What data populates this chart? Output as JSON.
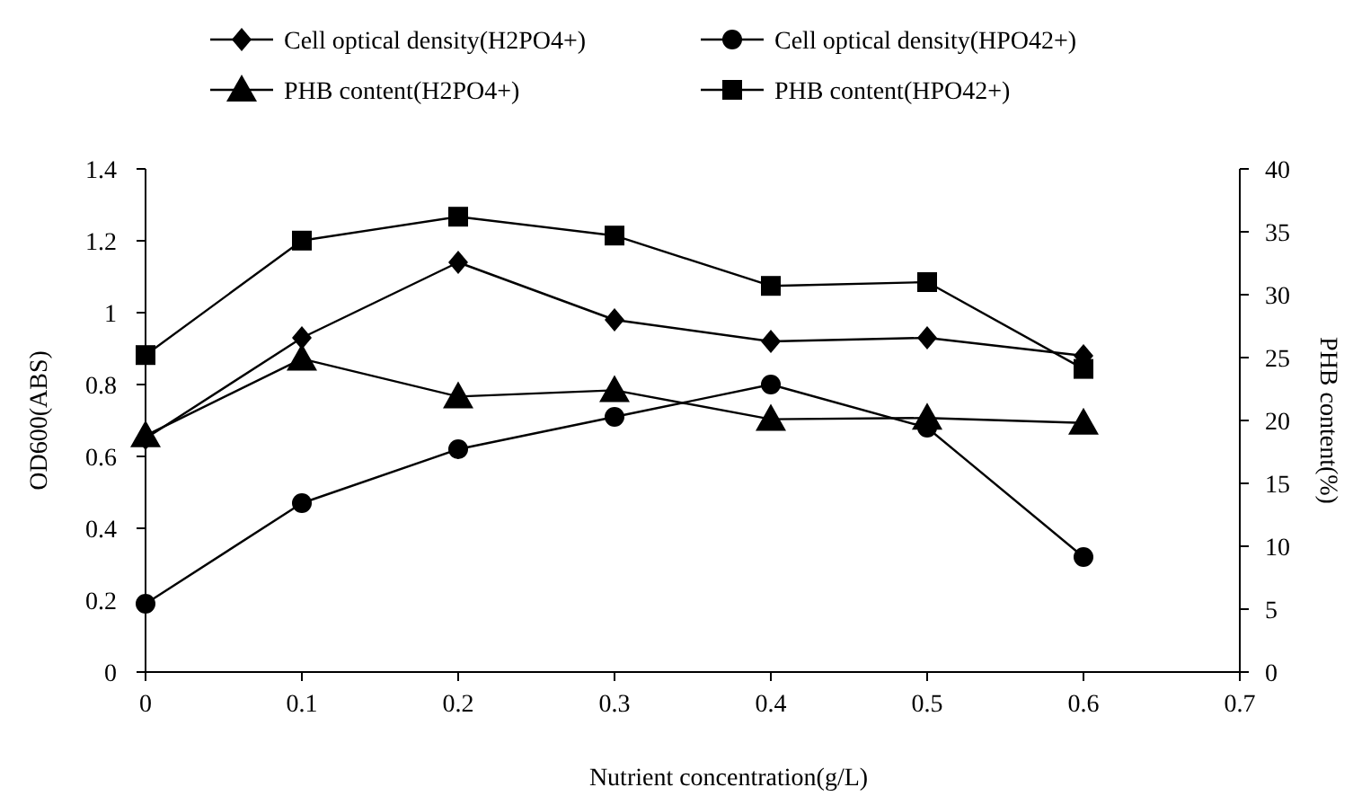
{
  "chart_data": {
    "type": "line",
    "xlabel": "Nutrient concentration(g/L)",
    "ylabel": "OD600(ABS)",
    "y2label": "PHB content(%)",
    "x": [
      0,
      0.1,
      0.2,
      0.3,
      0.4,
      0.5,
      0.6
    ],
    "xlim": [
      0,
      0.7
    ],
    "xticks": [
      0,
      0.1,
      0.2,
      0.3,
      0.4,
      0.5,
      0.6,
      0.7
    ],
    "ylim": [
      0,
      1.4
    ],
    "yticks": [
      0,
      0.2,
      0.4,
      0.6,
      0.8,
      1,
      1.2,
      1.4
    ],
    "y2lim": [
      0,
      40
    ],
    "y2ticks": [
      0,
      5,
      10,
      15,
      20,
      25,
      30,
      35,
      40
    ],
    "grid": false,
    "legend": "top",
    "line_style": "solid",
    "series": [
      {
        "name": "Cell optical density(H2PO4+)",
        "color": "#000000",
        "marker": "diamond",
        "values": [
          0.65,
          0.93,
          1.14,
          0.98,
          0.92,
          0.93,
          0.88
        ]
      },
      {
        "name": "Cell optical density(HPO42+)",
        "color": "#000000",
        "marker": "circle",
        "values": [
          0.19,
          0.47,
          0.62,
          0.71,
          0.8,
          0.68,
          0.32
        ]
      },
      {
        "name": "PHB content(H2PO4+)",
        "color": "#000000",
        "marker": "triangle",
        "axis": "y2",
        "values": [
          18.8,
          24.9,
          21.9,
          22.4,
          20.1,
          20.2,
          19.8
        ]
      },
      {
        "name": "PHB content(HPO42+)",
        "color": "#000000",
        "marker": "square",
        "axis": "y2",
        "values": [
          25.2,
          34.3,
          36.2,
          34.7,
          30.7,
          31.0,
          24.1
        ]
      }
    ]
  }
}
